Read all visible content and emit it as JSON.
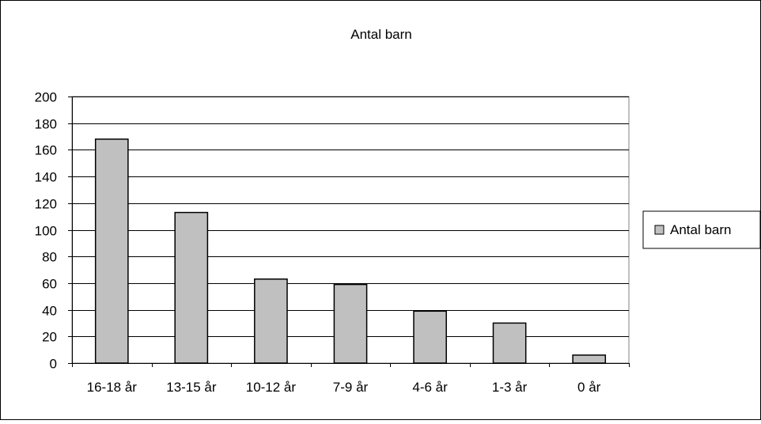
{
  "chart_data": {
    "type": "bar",
    "title": "Antal barn",
    "categories": [
      "16-18 år",
      "13-15 år",
      "10-12 år",
      "7-9 år",
      "4-6 år",
      "1-3 år",
      "0 år"
    ],
    "series": [
      {
        "name": "Antal barn",
        "values": [
          168,
          113,
          63,
          59,
          39,
          30,
          6
        ]
      }
    ],
    "ylim": [
      0,
      200
    ],
    "yticks": [
      0,
      20,
      40,
      60,
      80,
      100,
      120,
      140,
      160,
      180,
      200
    ],
    "grid": true,
    "legend_position": "right",
    "colors": {
      "bar_fill": "#c0c0c0",
      "bar_stroke": "#000000",
      "gridline": "#000000",
      "plot_border": "#808080"
    }
  }
}
